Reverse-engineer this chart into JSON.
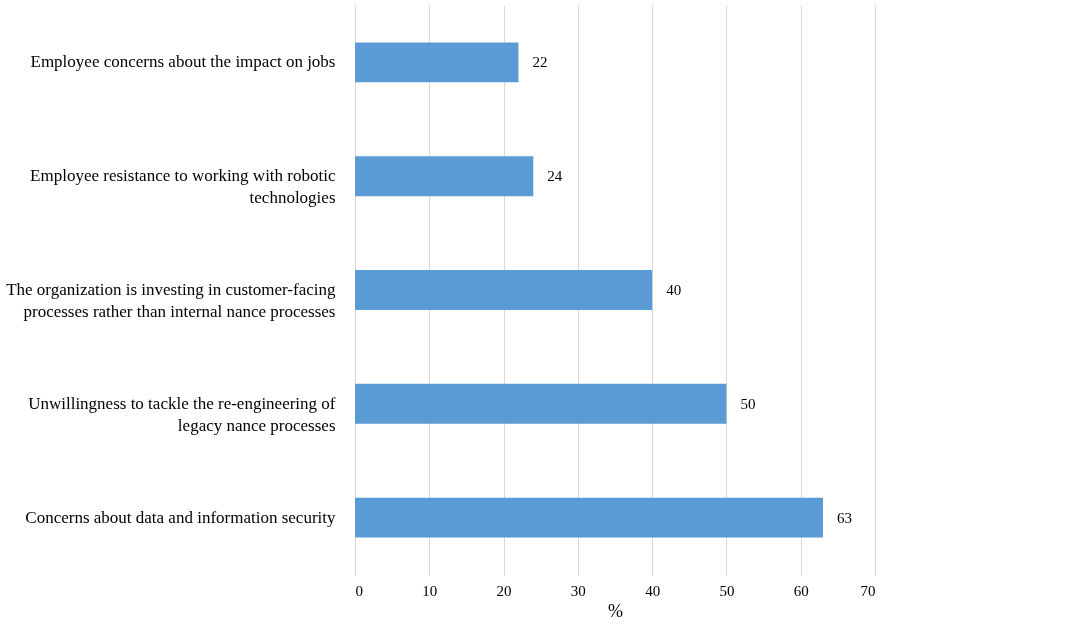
{
  "chart_data": {
    "type": "bar",
    "orientation": "horizontal",
    "xlabel": "%",
    "categories": [
      "Employee concerns about the impact on jobs",
      "Employee resistance to working with robotic technologies",
      "The organization is investing in customer-facing processes rather than internal nance processes",
      "Unwillingness to tackle the re-engineering of legacy nance processes",
      "Concerns about data and information security"
    ],
    "values": [
      22,
      24,
      40,
      50,
      63
    ],
    "color": "#5b9bd5",
    "xlim": [
      0,
      70
    ],
    "xticks": [
      0,
      10,
      20,
      30,
      40,
      50,
      60,
      70
    ],
    "grid": "x",
    "data_labels": true
  }
}
